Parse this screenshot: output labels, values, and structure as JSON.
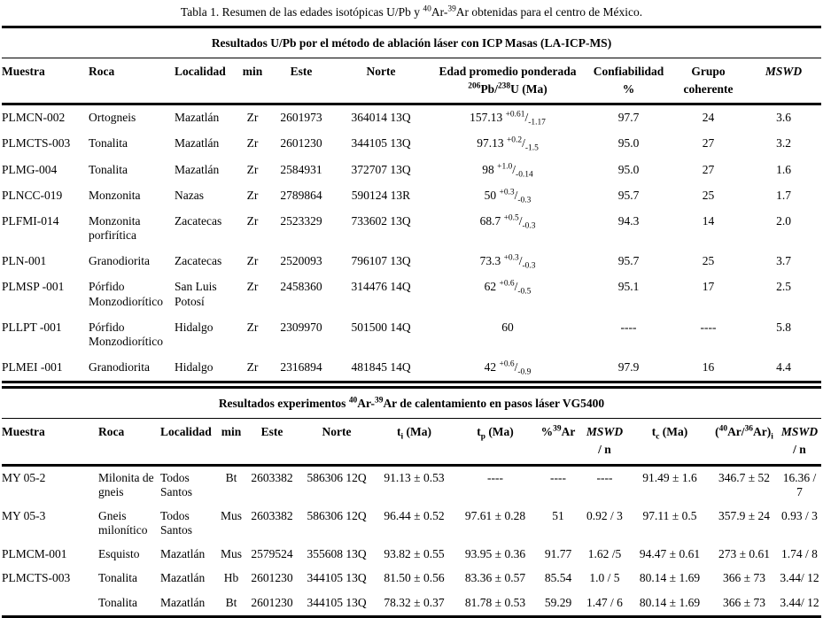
{
  "page_title": "Tabla 1. Resumen de las edades isotópicas U/Pb y ^40^Ar-^39^Ar obtenidas para el centro de México.",
  "upb_table": {
    "section_title": "Resultados U/Pb por el método de ablación láser con ICP Masas (LA-ICP-MS)",
    "columns": [
      "Muestra",
      "Roca",
      "Localidad",
      "min",
      "Este",
      "Norte",
      "Edad promedio ponderada\n^206^Pb/^238^U (Ma)",
      "Confiabilidad\n%",
      "Grupo\ncoherente",
      "*MSWD*"
    ],
    "rows": [
      [
        "PLMCN-002",
        "Ortogneis",
        "Mazatlán",
        "Zr",
        "2601973",
        "364014 13Q",
        "157.13 ^+0.61^/~-1.17~",
        "97.7",
        "24",
        "3.6"
      ],
      [
        "PLMCTS-003",
        "Tonalita",
        "Mazatlán",
        "Zr",
        "2601230",
        "344105 13Q",
        "97.13 ^+0.2^/~-1.5~",
        "95.0",
        "27",
        "3.2"
      ],
      [
        "PLMG-004",
        "Tonalita",
        "Mazatlán",
        "Zr",
        "2584931",
        "372707 13Q",
        "98 ^+1.0^/~-0.14~",
        "95.0",
        "27",
        "1.6"
      ],
      [
        "PLNCC-019",
        "Monzonita",
        "Nazas",
        "Zr",
        "2789864",
        "590124 13R",
        "50 ^+0.3^/~-0.3~",
        "95.7",
        "25",
        "1.7"
      ],
      [
        "PLFMI-014",
        "Monzonita porfirítica",
        "Zacatecas",
        "Zr",
        "2523329",
        "733602 13Q",
        "68.7 ^+0.5^/~-0.3~",
        "94.3",
        "14",
        "2.0"
      ],
      [
        "PLN-001",
        "Granodiorita",
        "Zacatecas",
        "Zr",
        "2520093",
        "796107 13Q",
        "73.3 ^+0.3^/~-0.3~",
        "95.7",
        "25",
        "3.7"
      ],
      [
        "PLMSP -001",
        "Pórfido Monzodiorítico",
        "San Luis Potosí",
        "Zr",
        "2458360",
        "314476 14Q",
        "62 ^+0.6^/~-0.5~",
        "95.1",
        "17",
        "2.5"
      ],
      [
        "PLLPT -001",
        "Pórfido Monzodiorítico",
        "Hidalgo",
        "Zr",
        "2309970",
        "501500 14Q",
        "60",
        "----",
        "----",
        "5.8"
      ],
      [
        "PLMEI -001",
        "Granodiorita",
        "Hidalgo",
        "Zr",
        "2316894",
        "481845 14Q",
        "42 ^+0.6^/~-0.9~",
        "97.9",
        "16",
        "4.4"
      ]
    ]
  },
  "arar_table": {
    "section_title": "Resultados experimentos ^40^Ar-^39^Ar de calentamiento en pasos láser VG5400",
    "columns": [
      "Muestra",
      "Roca",
      "Localidad",
      "min",
      "Este",
      "Norte",
      "t~i~ (Ma)",
      "t~p~ (Ma)",
      "%^39^Ar",
      "*MSWD*\n/ n",
      "t~c~ (Ma)",
      "(^40^Ar/^36^Ar)~i~",
      "*MSWD*\n/ n"
    ],
    "rows": [
      [
        "MY 05-2",
        "Milonita de gneis",
        "Todos Santos",
        "Bt",
        "2603382",
        "586306 12Q",
        "91.13 ± 0.53",
        "----",
        "----",
        "----",
        "91.49 ± 1.6",
        "346.7 ± 52",
        "16.36 / 7"
      ],
      [
        "MY 05-3",
        "Gneis milonítico",
        "Todos Santos",
        "Mus",
        "2603382",
        "586306 12Q",
        "96.44 ± 0.52",
        "97.61 ± 0.28",
        "51",
        "0.92 / 3",
        "97.11 ± 0.5",
        "357.9 ± 24",
        "0.93 / 3"
      ],
      [
        "PLMCM-001",
        "Esquisto",
        "Mazatlán",
        "Mus",
        "2579524",
        "355608 13Q",
        "93.82 ± 0.55",
        "93.95 ± 0.36",
        "91.77",
        "1.62 /5",
        "94.47 ± 0.61",
        "273 ± 0.61",
        "1.74 / 8"
      ],
      [
        "PLMCTS-003",
        "Tonalita",
        "Mazatlán",
        "Hb",
        "2601230",
        "344105 13Q",
        "81.50 ± 0.56",
        "83.36 ± 0.57",
        "85.54",
        "1.0 / 5",
        "80.14 ± 1.69",
        "366 ± 73",
        "3.44/ 12"
      ],
      [
        "",
        "Tonalita",
        "Mazatlán",
        "Bt",
        "2601230",
        "344105 13Q",
        "78.32 ± 0.37",
        "81.78 ± 0.53",
        "59.29",
        "1.47 / 6",
        "80.14 ± 1.69",
        "366 ± 73",
        "3.44/ 12"
      ]
    ]
  }
}
